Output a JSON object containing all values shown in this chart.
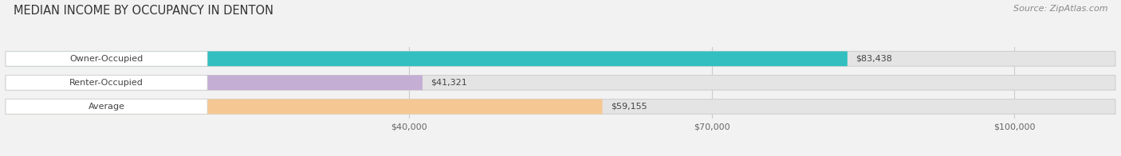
{
  "title": "MEDIAN INCOME BY OCCUPANCY IN DENTON",
  "source": "Source: ZipAtlas.com",
  "categories": [
    "Owner-Occupied",
    "Renter-Occupied",
    "Average"
  ],
  "values": [
    83438,
    41321,
    59155
  ],
  "labels": [
    "$83,438",
    "$41,321",
    "$59,155"
  ],
  "bar_colors": [
    "#33bfc0",
    "#c4aed4",
    "#f5c893"
  ],
  "xlim_min": 0,
  "xlim_max": 110000,
  "xticks": [
    40000,
    70000,
    100000
  ],
  "xticklabels": [
    "$40,000",
    "$70,000",
    "$100,000"
  ],
  "background_color": "#f2f2f2",
  "bar_bg_color": "#e4e4e4",
  "bar_bg_edge_color": "#d0d0d0",
  "white_cap_color": "#ffffff",
  "title_fontsize": 10.5,
  "source_fontsize": 8,
  "cat_fontsize": 8,
  "val_fontsize": 8,
  "tick_fontsize": 8,
  "bar_height": 0.62,
  "figsize": [
    14.06,
    1.96
  ],
  "dpi": 100
}
